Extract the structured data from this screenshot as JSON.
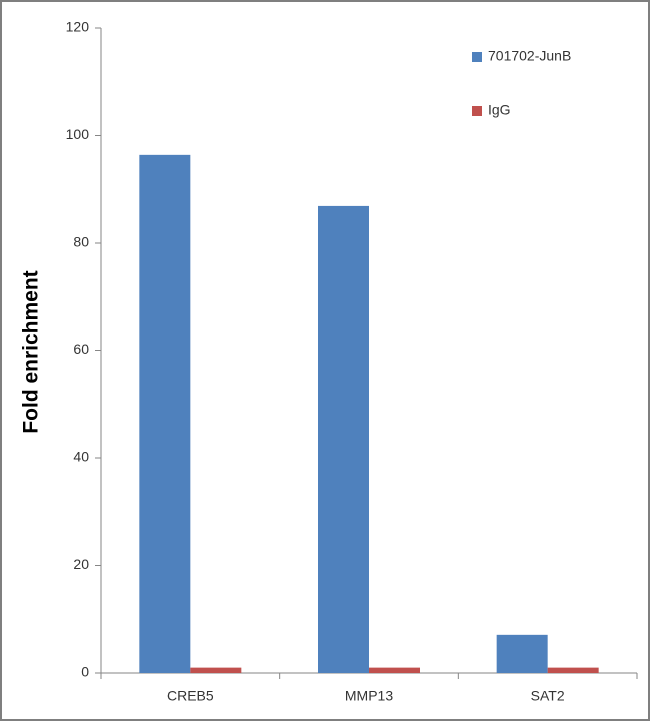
{
  "chart_data": {
    "type": "bar",
    "y_label": "Fold enrichment",
    "categories": [
      "CREB5",
      "MMP13",
      "SAT2"
    ],
    "series": [
      {
        "name": "701702-JunB",
        "color": "#4f81bd",
        "values": [
          96.4,
          86.9,
          7.1
        ]
      },
      {
        "name": "IgG",
        "color": "#c0504d",
        "values": [
          1,
          1,
          1
        ]
      }
    ],
    "ylim": [
      0,
      120
    ],
    "yticks": [
      0,
      20,
      40,
      60,
      80,
      100,
      120
    ],
    "legend": "top-right"
  }
}
